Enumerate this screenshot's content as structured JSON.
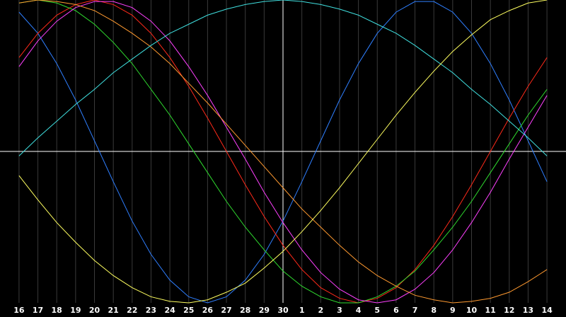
{
  "chart_data": {
    "type": "line",
    "categories": [
      "16",
      "17",
      "18",
      "19",
      "20",
      "21",
      "22",
      "23",
      "24",
      "25",
      "26",
      "27",
      "28",
      "29",
      "30",
      "1",
      "2",
      "3",
      "4",
      "5",
      "6",
      "7",
      "8",
      "9",
      "10",
      "11",
      "12",
      "13",
      "14"
    ],
    "ylim": [
      -100,
      100
    ],
    "grid": true,
    "series": [
      {
        "color": "#2f7fff",
        "values": [
          92,
          78,
          58,
          34,
          7,
          -20,
          -46,
          -68,
          -85,
          -96,
          -100,
          -96,
          -85,
          -68,
          -46,
          -20,
          7,
          34,
          58,
          78,
          92,
          99,
          99,
          92,
          78,
          58,
          34,
          7,
          -20
        ]
      },
      {
        "color": "#ff2a1a",
        "values": [
          62,
          78,
          90,
          97,
          100,
          97,
          90,
          78,
          62,
          43,
          22,
          0,
          -22,
          -43,
          -62,
          -78,
          -90,
          -97,
          -100,
          -97,
          -90,
          -78,
          -62,
          -43,
          -22,
          0,
          22,
          43,
          62
        ]
      },
      {
        "color": "#2fdc2f",
        "values": [
          98,
          100,
          98,
          93,
          84,
          72,
          58,
          41,
          24,
          5,
          -14,
          -33,
          -50,
          -65,
          -79,
          -89,
          -96,
          -100,
          -100,
          -96,
          -89,
          -79,
          -65,
          -50,
          -33,
          -14,
          5,
          24,
          41
        ]
      },
      {
        "color": "#ff40ff",
        "values": [
          56,
          73,
          86,
          95,
          99,
          99,
          95,
          86,
          73,
          56,
          37,
          16,
          -5,
          -27,
          -47,
          -65,
          -80,
          -91,
          -98,
          -100,
          -98,
          -91,
          -80,
          -65,
          -47,
          -27,
          -5,
          16,
          37
        ]
      },
      {
        "color": "#ff9a30",
        "values": [
          98,
          100,
          99,
          97,
          93,
          86,
          78,
          69,
          58,
          45,
          32,
          18,
          4,
          -10,
          -24,
          -38,
          -50,
          -62,
          -73,
          -82,
          -89,
          -95,
          -98,
          -100,
          -99,
          -97,
          -93,
          -86,
          -78
        ]
      },
      {
        "color": "#40e0e0",
        "values": [
          -3,
          9,
          20,
          31,
          41,
          52,
          61,
          70,
          78,
          84,
          90,
          94,
          97,
          99,
          100,
          99,
          97,
          94,
          90,
          84,
          78,
          70,
          61,
          52,
          41,
          31,
          20,
          9,
          -3
        ]
      },
      {
        "color": "#ffff60",
        "values": [
          -16,
          -32,
          -47,
          -60,
          -72,
          -82,
          -90,
          -96,
          -99,
          -100,
          -98,
          -93,
          -87,
          -77,
          -66,
          -53,
          -39,
          -24,
          -8,
          8,
          24,
          39,
          53,
          66,
          77,
          87,
          93,
          98,
          100
        ]
      }
    ]
  }
}
